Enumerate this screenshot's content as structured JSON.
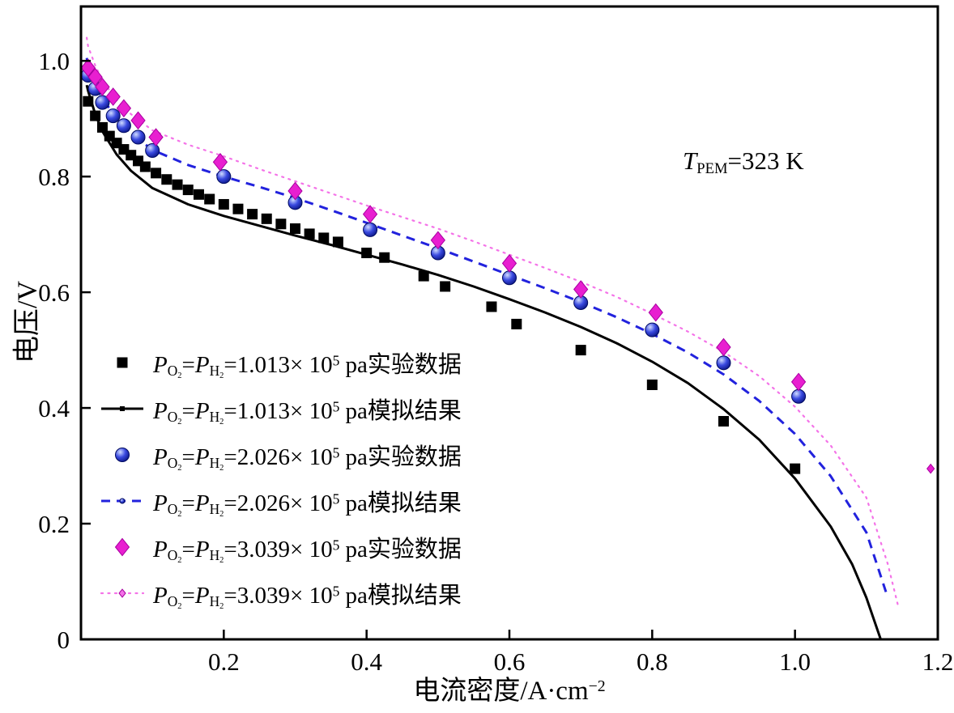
{
  "figure": {
    "background": "#ffffff",
    "annotation": "*T*_{PEM}=323 K",
    "y_axis": {
      "label": "电压/V",
      "min": 0,
      "max": 1.094,
      "ticks": [
        0,
        0.2,
        0.4,
        0.6,
        0.8,
        1.0
      ],
      "tick_labels": [
        "0",
        "0.2",
        "0.4",
        "0.6",
        "0.8",
        "1.0"
      ]
    },
    "x_axis": {
      "label": "电流密度/A·cm^{−2}",
      "min": 0,
      "max": 1.2,
      "ticks": [
        0.2,
        0.4,
        0.6,
        0.8,
        1.0,
        1.2
      ],
      "tick_labels": [
        "0.2",
        "0.4",
        "0.6",
        "0.8",
        "1.0",
        "1.2"
      ]
    }
  },
  "chart_data": {
    "type": "line",
    "title": "",
    "xlabel": "电流密度/A·cm⁻²",
    "ylabel": "电压/V",
    "xlim": [
      0,
      1.2
    ],
    "ylim": [
      0,
      1.094
    ],
    "grid": false,
    "legend_position": "inside lower-left",
    "annotation": "T_PEM=323 K",
    "series": [
      {
        "name": "P_O2=P_H2=1.013×10⁵ pa实验数据",
        "kind": "scatter",
        "marker": "square",
        "color": "#000000",
        "points": [
          [
            0.01,
            0.93
          ],
          [
            0.02,
            0.905
          ],
          [
            0.03,
            0.885
          ],
          [
            0.04,
            0.87
          ],
          [
            0.05,
            0.858
          ],
          [
            0.06,
            0.847
          ],
          [
            0.07,
            0.837
          ],
          [
            0.08,
            0.827
          ],
          [
            0.09,
            0.817
          ],
          [
            0.105,
            0.806
          ],
          [
            0.12,
            0.795
          ],
          [
            0.135,
            0.786
          ],
          [
            0.15,
            0.777
          ],
          [
            0.165,
            0.769
          ],
          [
            0.18,
            0.761
          ],
          [
            0.2,
            0.752
          ],
          [
            0.22,
            0.744
          ],
          [
            0.24,
            0.735
          ],
          [
            0.26,
            0.727
          ],
          [
            0.28,
            0.718
          ],
          [
            0.3,
            0.71
          ],
          [
            0.32,
            0.701
          ],
          [
            0.34,
            0.694
          ],
          [
            0.36,
            0.687
          ],
          [
            0.4,
            0.668
          ],
          [
            0.425,
            0.66
          ],
          [
            0.48,
            0.628
          ],
          [
            0.51,
            0.61
          ],
          [
            0.575,
            0.575
          ],
          [
            0.61,
            0.545
          ],
          [
            0.7,
            0.5
          ],
          [
            0.8,
            0.44
          ],
          [
            0.9,
            0.377
          ],
          [
            1.0,
            0.295
          ]
        ]
      },
      {
        "name": "P_O2=P_H2=1.013×10⁵ pa模拟结果",
        "kind": "line",
        "dash": "solid",
        "color": "#000000",
        "width": 3,
        "points": [
          [
            0.008,
            0.958
          ],
          [
            0.01,
            0.948
          ],
          [
            0.02,
            0.908
          ],
          [
            0.03,
            0.878
          ],
          [
            0.05,
            0.838
          ],
          [
            0.07,
            0.81
          ],
          [
            0.1,
            0.78
          ],
          [
            0.15,
            0.752
          ],
          [
            0.2,
            0.732
          ],
          [
            0.25,
            0.715
          ],
          [
            0.3,
            0.698
          ],
          [
            0.35,
            0.682
          ],
          [
            0.4,
            0.665
          ],
          [
            0.45,
            0.648
          ],
          [
            0.5,
            0.63
          ],
          [
            0.55,
            0.61
          ],
          [
            0.6,
            0.588
          ],
          [
            0.65,
            0.565
          ],
          [
            0.7,
            0.54
          ],
          [
            0.75,
            0.512
          ],
          [
            0.8,
            0.48
          ],
          [
            0.85,
            0.443
          ],
          [
            0.9,
            0.398
          ],
          [
            0.95,
            0.345
          ],
          [
            1.0,
            0.278
          ],
          [
            1.05,
            0.195
          ],
          [
            1.08,
            0.13
          ],
          [
            1.1,
            0.072
          ],
          [
            1.12,
            0.0
          ]
        ]
      },
      {
        "name": "P_O2=P_H2=2.026×10⁵ pa实验数据",
        "kind": "scatter",
        "marker": "circle",
        "color": "#2233cc",
        "points": [
          [
            0.01,
            0.975
          ],
          [
            0.02,
            0.952
          ],
          [
            0.03,
            0.928
          ],
          [
            0.045,
            0.905
          ],
          [
            0.06,
            0.888
          ],
          [
            0.08,
            0.868
          ],
          [
            0.1,
            0.845
          ],
          [
            0.2,
            0.8
          ],
          [
            0.3,
            0.755
          ],
          [
            0.405,
            0.708
          ],
          [
            0.5,
            0.668
          ],
          [
            0.6,
            0.625
          ],
          [
            0.7,
            0.582
          ],
          [
            0.8,
            0.535
          ],
          [
            0.9,
            0.478
          ],
          [
            1.005,
            0.42
          ]
        ]
      },
      {
        "name": "P_O2=P_H2=2.026×10⁵ pa模拟结果",
        "kind": "line",
        "dash": "dashed",
        "color": "#2222dd",
        "width": 3,
        "points": [
          [
            0.008,
            1.005
          ],
          [
            0.01,
            0.992
          ],
          [
            0.02,
            0.958
          ],
          [
            0.03,
            0.935
          ],
          [
            0.05,
            0.9
          ],
          [
            0.07,
            0.875
          ],
          [
            0.1,
            0.846
          ],
          [
            0.15,
            0.82
          ],
          [
            0.2,
            0.8
          ],
          [
            0.25,
            0.782
          ],
          [
            0.3,
            0.763
          ],
          [
            0.35,
            0.742
          ],
          [
            0.4,
            0.72
          ],
          [
            0.45,
            0.698
          ],
          [
            0.5,
            0.676
          ],
          [
            0.55,
            0.653
          ],
          [
            0.6,
            0.63
          ],
          [
            0.65,
            0.607
          ],
          [
            0.7,
            0.583
          ],
          [
            0.75,
            0.557
          ],
          [
            0.8,
            0.528
          ],
          [
            0.85,
            0.496
          ],
          [
            0.9,
            0.458
          ],
          [
            0.95,
            0.412
          ],
          [
            1.0,
            0.355
          ],
          [
            1.05,
            0.282
          ],
          [
            1.1,
            0.185
          ],
          [
            1.13,
            0.072
          ]
        ]
      },
      {
        "name": "P_O2=P_H2=3.039×10⁵ pa实验数据",
        "kind": "scatter",
        "marker": "diamond",
        "color": "#e81fd0",
        "points": [
          [
            0.01,
            0.988
          ],
          [
            0.02,
            0.972
          ],
          [
            0.03,
            0.955
          ],
          [
            0.045,
            0.938
          ],
          [
            0.06,
            0.918
          ],
          [
            0.08,
            0.897
          ],
          [
            0.105,
            0.868
          ],
          [
            0.195,
            0.825
          ],
          [
            0.3,
            0.775
          ],
          [
            0.405,
            0.735
          ],
          [
            0.5,
            0.69
          ],
          [
            0.6,
            0.65
          ],
          [
            0.7,
            0.605
          ],
          [
            0.805,
            0.565
          ],
          [
            0.9,
            0.505
          ],
          [
            1.005,
            0.445
          ]
        ]
      },
      {
        "name": "P_O2=P_H2=3.039×10⁵ pa模拟结果",
        "kind": "line",
        "dash": "dotted",
        "color": "#f473e8",
        "width": 2.2,
        "points": [
          [
            0.008,
            1.04
          ],
          [
            0.01,
            1.025
          ],
          [
            0.02,
            0.992
          ],
          [
            0.03,
            0.966
          ],
          [
            0.05,
            0.932
          ],
          [
            0.07,
            0.908
          ],
          [
            0.1,
            0.88
          ],
          [
            0.15,
            0.855
          ],
          [
            0.2,
            0.835
          ],
          [
            0.25,
            0.813
          ],
          [
            0.3,
            0.792
          ],
          [
            0.35,
            0.771
          ],
          [
            0.4,
            0.75
          ],
          [
            0.45,
            0.73
          ],
          [
            0.5,
            0.71
          ],
          [
            0.55,
            0.688
          ],
          [
            0.6,
            0.665
          ],
          [
            0.65,
            0.642
          ],
          [
            0.7,
            0.618
          ],
          [
            0.75,
            0.592
          ],
          [
            0.8,
            0.563
          ],
          [
            0.85,
            0.532
          ],
          [
            0.9,
            0.497
          ],
          [
            0.95,
            0.455
          ],
          [
            1.0,
            0.402
          ],
          [
            1.05,
            0.335
          ],
          [
            1.1,
            0.245
          ],
          [
            1.13,
            0.13
          ],
          [
            1.145,
            0.055
          ]
        ]
      }
    ],
    "stray_marker": {
      "x": 1.19,
      "y": 0.295,
      "marker": "diamond",
      "color": "#e81fd0",
      "size": 9
    }
  },
  "legend": {
    "items": [
      {
        "sample": "square",
        "color": "#000000",
        "label": "*P*_{O_{2}}=*P*_{H_{2}}=1.013× 10^{5} pa实验数据"
      },
      {
        "sample": "line-solid",
        "color": "#000000",
        "label": "*P*_{O_{2}}=*P*_{H_{2}}=1.013× 10^{5} pa模拟结果"
      },
      {
        "sample": "circle",
        "color": "#2233cc",
        "label": "*P*_{O_{2}}=*P*_{H_{2}}=2.026× 10^{5} pa实验数据"
      },
      {
        "sample": "line-dashed",
        "color": "#2222dd",
        "label": "*P*_{O_{2}}=*P*_{H_{2}}=2.026× 10^{5} pa模拟结果"
      },
      {
        "sample": "diamond",
        "color": "#e81fd0",
        "label": "*P*_{O_{2}}=*P*_{H_{2}}=3.039× 10^{5} pa实验数据"
      },
      {
        "sample": "line-dotted",
        "color": "#f473e8",
        "label": "*P*_{O_{2}}=*P*_{H_{2}}=3.039× 10^{5} pa模拟结果"
      }
    ]
  }
}
